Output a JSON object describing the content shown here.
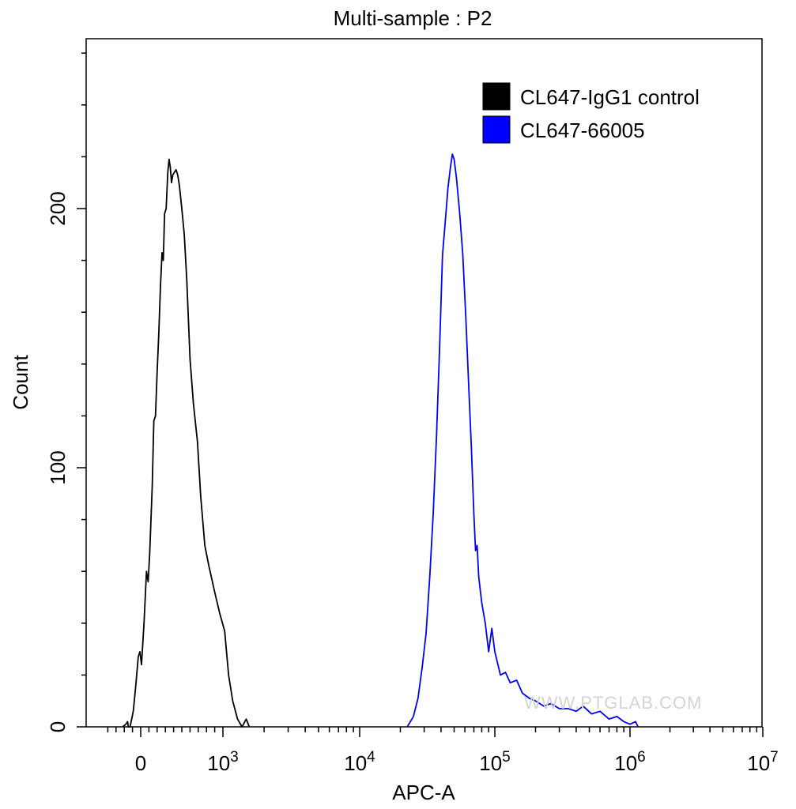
{
  "chart_data": {
    "type": "line",
    "title": "Multi-sample : P2",
    "xlabel": "APC-A",
    "ylabel": "Count",
    "x_scale": "biexponential",
    "xlim": [
      -500,
      10000000
    ],
    "ylim": [
      0,
      260
    ],
    "x_ticks": [
      {
        "value": 0,
        "base": "0",
        "exp": ""
      },
      {
        "value": 1000,
        "base": "10",
        "exp": "3"
      },
      {
        "value": 10000,
        "base": "10",
        "exp": "4"
      },
      {
        "value": 100000,
        "base": "10",
        "exp": "5"
      },
      {
        "value": 1000000,
        "base": "10",
        "exp": "6"
      },
      {
        "value": 10000000,
        "base": "10",
        "exp": "7"
      }
    ],
    "y_ticks": [
      0,
      100,
      200
    ],
    "grid": false,
    "legend_position": "top-right",
    "watermark": "WWW.PTGLAB.COM",
    "series": [
      {
        "name": "CL647-IgG1 control",
        "color": "#000000",
        "points": [
          [
            -220,
            0
          ],
          [
            -180,
            1
          ],
          [
            -160,
            2
          ],
          [
            -150,
            0
          ],
          [
            -130,
            0
          ],
          [
            -110,
            3
          ],
          [
            -90,
            6
          ],
          [
            -60,
            16
          ],
          [
            -30,
            27
          ],
          [
            -10,
            29
          ],
          [
            10,
            24
          ],
          [
            40,
            40
          ],
          [
            70,
            60
          ],
          [
            90,
            56
          ],
          [
            110,
            67
          ],
          [
            140,
            93
          ],
          [
            160,
            118
          ],
          [
            180,
            120
          ],
          [
            200,
            137
          ],
          [
            220,
            152
          ],
          [
            240,
            170
          ],
          [
            260,
            183
          ],
          [
            275,
            180
          ],
          [
            290,
            198
          ],
          [
            310,
            200
          ],
          [
            330,
            214
          ],
          [
            345,
            219
          ],
          [
            360,
            216
          ],
          [
            375,
            210
          ],
          [
            390,
            213
          ],
          [
            410,
            214
          ],
          [
            430,
            215
          ],
          [
            450,
            213
          ],
          [
            470,
            209
          ],
          [
            500,
            200
          ],
          [
            530,
            190
          ],
          [
            560,
            173
          ],
          [
            600,
            142
          ],
          [
            640,
            125
          ],
          [
            690,
            110
          ],
          [
            730,
            89
          ],
          [
            780,
            70
          ],
          [
            830,
            62
          ],
          [
            900,
            52
          ],
          [
            960,
            44
          ],
          [
            1030,
            37
          ],
          [
            1100,
            20
          ],
          [
            1180,
            10
          ],
          [
            1280,
            3
          ],
          [
            1380,
            0
          ],
          [
            1480,
            3
          ],
          [
            1560,
            0
          ]
        ]
      },
      {
        "name": "CL647-66005",
        "color": "#0000ff",
        "points": [
          [
            22500,
            0
          ],
          [
            25000,
            4
          ],
          [
            27000,
            11
          ],
          [
            29000,
            23
          ],
          [
            31000,
            36
          ],
          [
            33000,
            58
          ],
          [
            35000,
            82
          ],
          [
            37000,
            112
          ],
          [
            39000,
            146
          ],
          [
            41000,
            182
          ],
          [
            43000,
            195
          ],
          [
            45000,
            208
          ],
          [
            47000,
            216
          ],
          [
            48500,
            221
          ],
          [
            50000,
            219
          ],
          [
            52000,
            212
          ],
          [
            55000,
            198
          ],
          [
            58000,
            182
          ],
          [
            61000,
            158
          ],
          [
            64000,
            132
          ],
          [
            67000,
            108
          ],
          [
            70000,
            82
          ],
          [
            72000,
            68
          ],
          [
            74000,
            70
          ],
          [
            76000,
            58
          ],
          [
            80000,
            48
          ],
          [
            85000,
            40
          ],
          [
            90000,
            29
          ],
          [
            95000,
            38
          ],
          [
            100000,
            29
          ],
          [
            110000,
            20
          ],
          [
            120000,
            21
          ],
          [
            130000,
            17
          ],
          [
            145000,
            18
          ],
          [
            160000,
            13
          ],
          [
            180000,
            11
          ],
          [
            200000,
            10
          ],
          [
            230000,
            8
          ],
          [
            260000,
            9
          ],
          [
            300000,
            7
          ],
          [
            350000,
            7
          ],
          [
            400000,
            6
          ],
          [
            450000,
            8
          ],
          [
            520000,
            5
          ],
          [
            600000,
            6
          ],
          [
            700000,
            3
          ],
          [
            800000,
            4
          ],
          [
            900000,
            2
          ],
          [
            1000000,
            1
          ],
          [
            1100000,
            2
          ],
          [
            1150000,
            0
          ]
        ]
      }
    ]
  }
}
